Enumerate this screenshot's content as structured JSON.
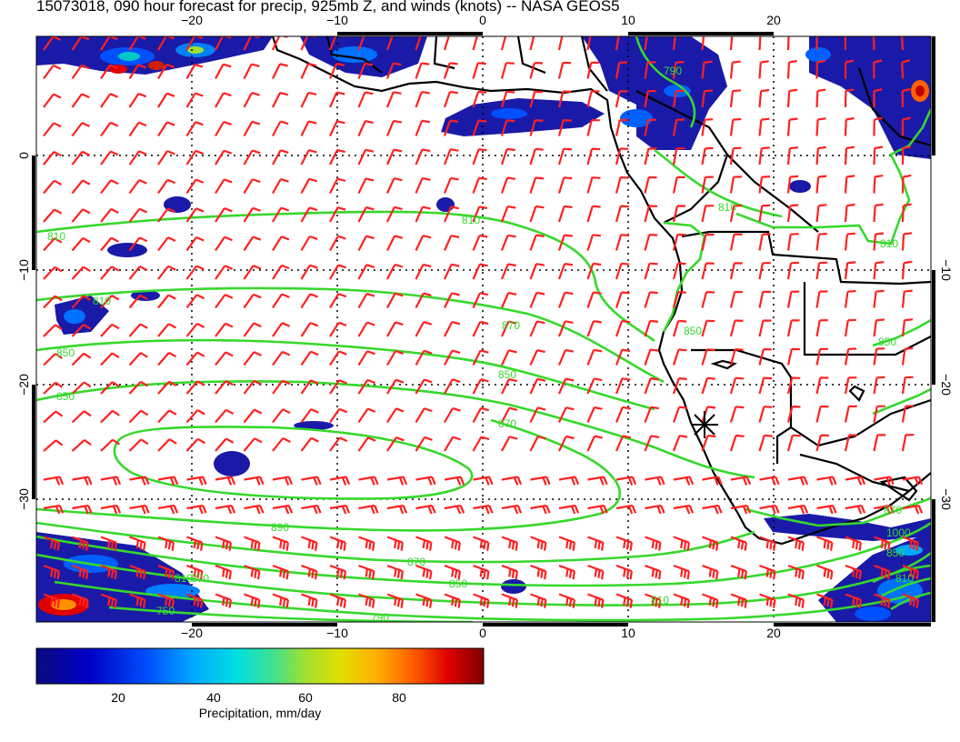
{
  "title": "15073018, 090 hour forecast for precip, 925mb Z, and winds (knots) -- NASA GEOS5",
  "map": {
    "lon_ticks_top": [
      "−20",
      "−10",
      "0",
      "10",
      "20"
    ],
    "lon_ticks_bottom": [
      "−20",
      "−10",
      "0",
      "10",
      "20"
    ],
    "lat_ticks_left": [
      "0",
      "−10",
      "−20",
      "−30"
    ],
    "lat_ticks_right": [
      "−10",
      "−20",
      "−30"
    ],
    "contour_labels": [
      "810",
      "810",
      "810",
      "810",
      "850",
      "850",
      "810",
      "870",
      "850",
      "870",
      "890",
      "870",
      "850",
      "810",
      "750",
      "850",
      "810",
      "870",
      "850",
      "810",
      "790",
      "790",
      "850",
      "870",
      "1000"
    ],
    "contour_color": "#36d82c",
    "wind_barb_color": "#ff2020",
    "coastline_color": "#000000"
  },
  "colorbar": {
    "label": "Precipitation, mm/day",
    "ticks": [
      "20",
      "40",
      "60",
      "80"
    ],
    "colors": [
      "#0b0b7e",
      "#0000c8",
      "#0050ff",
      "#00a8ff",
      "#00e0e0",
      "#40e090",
      "#a0e030",
      "#e0e000",
      "#ffb000",
      "#ff6000",
      "#e00000",
      "#800000"
    ]
  }
}
